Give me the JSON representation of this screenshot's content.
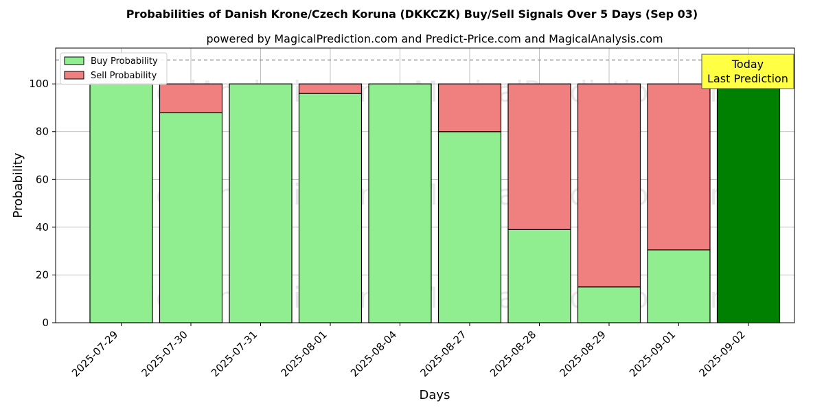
{
  "chart_data": {
    "type": "bar",
    "stacked": true,
    "title": "Probabilities of Danish Krone/Czech Koruna (DKKCZK) Buy/Sell Signals Over 5 Days (Sep 03)",
    "subtitle": "powered by MagicalPrediction.com and Predict-Price.com and MagicalAnalysis.com",
    "xlabel": "Days",
    "ylabel": "Probability",
    "ylim": [
      0,
      115
    ],
    "yticks": [
      0,
      20,
      40,
      60,
      80,
      100
    ],
    "grid": true,
    "legend_position": "top-left",
    "reference_line": {
      "y": 110,
      "style": "dashed",
      "color": "#808080"
    },
    "categories": [
      "2025-07-29",
      "2025-07-30",
      "2025-07-31",
      "2025-08-01",
      "2025-08-04",
      "2025-08-27",
      "2025-08-28",
      "2025-08-29",
      "2025-09-01",
      "2025-09-02"
    ],
    "series": [
      {
        "name": "Buy Probability",
        "color": "#90ee90",
        "values": [
          100,
          88,
          100,
          96,
          100,
          80,
          39,
          15,
          30.5,
          100
        ]
      },
      {
        "name": "Sell Probability",
        "color": "#f08080",
        "values": [
          0,
          12,
          0,
          4,
          0,
          20,
          61,
          85,
          69.5,
          0
        ]
      }
    ],
    "highlight": {
      "category": "2025-09-02",
      "color": "#008000"
    },
    "annotation": {
      "lines": [
        "Today",
        "Last Prediction"
      ],
      "background": "#ffff44"
    },
    "watermarks": [
      "MagicalAnalysis.com",
      "MagicalPrediction.com"
    ]
  }
}
